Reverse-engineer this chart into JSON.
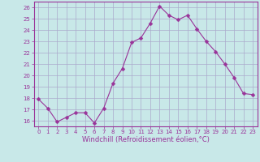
{
  "x": [
    0,
    1,
    2,
    3,
    4,
    5,
    6,
    7,
    8,
    9,
    10,
    11,
    12,
    13,
    14,
    15,
    16,
    17,
    18,
    19,
    20,
    21,
    22,
    23
  ],
  "y": [
    17.9,
    17.1,
    15.9,
    16.3,
    16.7,
    16.7,
    15.8,
    17.1,
    19.3,
    20.6,
    22.9,
    23.3,
    24.6,
    26.1,
    25.3,
    24.9,
    25.3,
    24.1,
    23.0,
    22.1,
    21.0,
    19.8,
    18.4,
    18.3
  ],
  "line_color": "#993399",
  "marker_color": "#993399",
  "bg_color": "#c8e8e8",
  "grid_color": "#aaaacc",
  "axis_label_color": "#993399",
  "tick_color": "#993399",
  "xlabel": "Windchill (Refroidissement éolien,°C)",
  "ylim": [
    15.5,
    26.5
  ],
  "xlim": [
    -0.5,
    23.5
  ],
  "yticks": [
    16,
    17,
    18,
    19,
    20,
    21,
    22,
    23,
    24,
    25,
    26
  ],
  "xticks": [
    0,
    1,
    2,
    3,
    4,
    5,
    6,
    7,
    8,
    9,
    10,
    11,
    12,
    13,
    14,
    15,
    16,
    17,
    18,
    19,
    20,
    21,
    22,
    23
  ]
}
